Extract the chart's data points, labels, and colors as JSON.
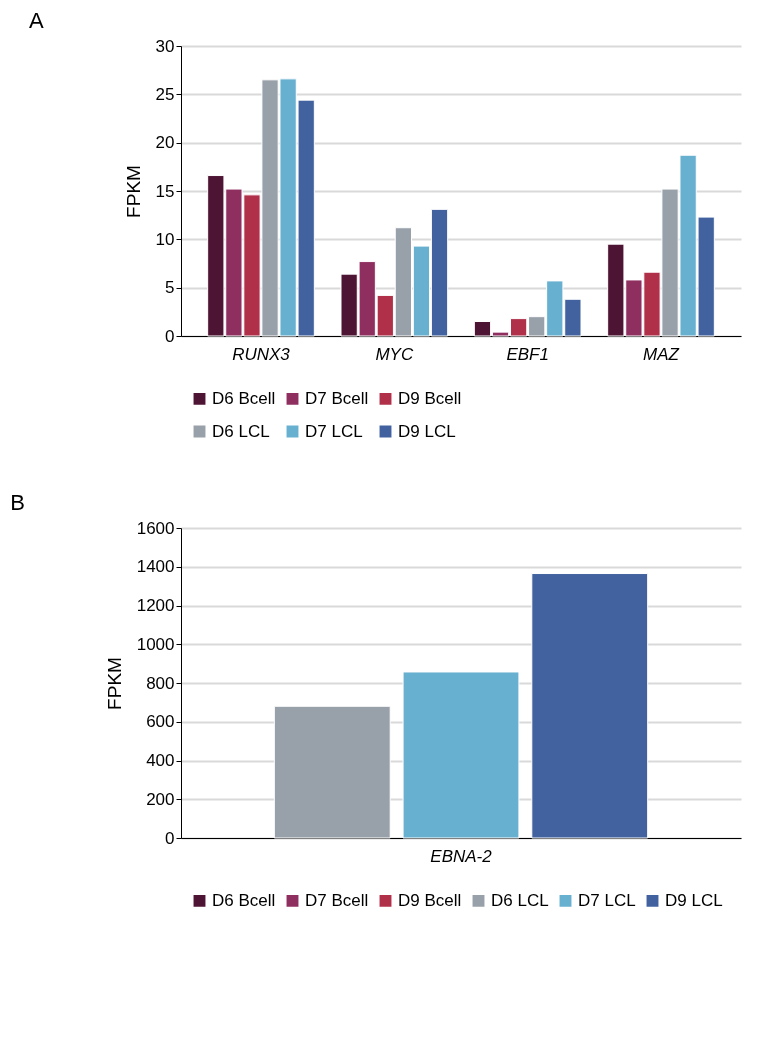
{
  "chart_data": [
    {
      "type": "bar",
      "title": "A",
      "ylabel": "FPKM",
      "categories": [
        "RUNX3",
        "MYC",
        "EBF1",
        "MAZ"
      ],
      "ylim": [
        0,
        30
      ],
      "yticks": [
        0,
        5,
        10,
        15,
        20,
        25,
        30
      ],
      "grid": "y",
      "legend": "bottom",
      "series": [
        {
          "name": "D6 Bcell",
          "color": "#4e1433",
          "values": [
            16.6,
            6.4,
            1.5,
            9.5
          ]
        },
        {
          "name": "D7 Bcell",
          "color": "#8e2f60",
          "values": [
            15.2,
            7.7,
            0.4,
            5.8
          ]
        },
        {
          "name": "D9 Bcell",
          "color": "#b0304a",
          "values": [
            14.6,
            4.2,
            1.8,
            6.6
          ]
        },
        {
          "name": "D6 LCL",
          "color": "#98a0a9",
          "values": [
            26.5,
            11.2,
            2.0,
            15.2
          ]
        },
        {
          "name": "D7 LCL",
          "color": "#67b0cf",
          "values": [
            26.6,
            9.3,
            5.7,
            18.7
          ]
        },
        {
          "name": "D9 LCL",
          "color": "#41629f",
          "values": [
            24.4,
            13.1,
            3.8,
            12.3
          ]
        }
      ]
    },
    {
      "type": "bar",
      "title": "B",
      "ylabel": "FPKM",
      "categories": [
        "EBNA-2"
      ],
      "ylim": [
        0,
        1600
      ],
      "yticks": [
        0,
        200,
        400,
        600,
        800,
        1000,
        1200,
        1400,
        1600
      ],
      "grid": "y",
      "legend": "bottom",
      "series": [
        {
          "name": "D6 Bcell",
          "color": "#4e1433",
          "values": [
            null
          ]
        },
        {
          "name": "D7 Bcell",
          "color": "#8e2f60",
          "values": [
            null
          ]
        },
        {
          "name": "D9 Bcell",
          "color": "#b0304a",
          "values": [
            null
          ]
        },
        {
          "name": "D6 LCL",
          "color": "#98a0a9",
          "values": [
            680
          ]
        },
        {
          "name": "D7 LCL",
          "color": "#67b0cf",
          "values": [
            857
          ]
        },
        {
          "name": "D9 LCL",
          "color": "#41629f",
          "values": [
            1365
          ]
        }
      ]
    }
  ]
}
